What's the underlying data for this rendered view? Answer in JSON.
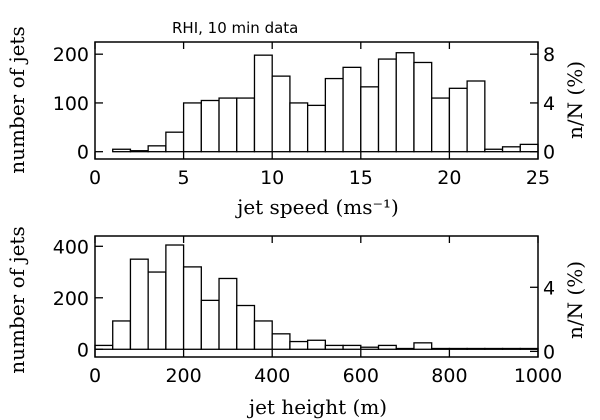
{
  "chart_data": [
    {
      "type": "bar",
      "title": "RHI, 10 min data",
      "xlabel": "jet speed (ms⁻¹)",
      "ylabel": "number of jets",
      "ylabel_right": "n/N (%)",
      "xlim": [
        0,
        25
      ],
      "ylim": [
        -15,
        225
      ],
      "right_ylim": [
        -0.6,
        9.0
      ],
      "xticks": [
        0,
        5,
        10,
        15,
        20,
        25
      ],
      "yticks": [
        0,
        100,
        200
      ],
      "right_yticks": [
        0,
        4,
        8
      ],
      "bin_width": 1,
      "bin_start": 1,
      "values": [
        5,
        2,
        12,
        40,
        100,
        105,
        110,
        110,
        198,
        155,
        100,
        95,
        150,
        173,
        133,
        190,
        203,
        183,
        110,
        130,
        145,
        5,
        10,
        15
      ],
      "grid": false
    },
    {
      "type": "bar",
      "xlabel": "jet height (m)",
      "ylabel": "number of jets",
      "ylabel_right": "n/N (%)",
      "xlim": [
        0,
        1000
      ],
      "ylim": [
        -30,
        440
      ],
      "right_ylim": [
        -0.35,
        7.2
      ],
      "xticks": [
        0,
        200,
        400,
        600,
        800,
        1000
      ],
      "yticks": [
        0,
        200,
        400
      ],
      "right_yticks": [
        0,
        4
      ],
      "bin_width": 40,
      "bin_start": 0,
      "values": [
        15,
        110,
        350,
        300,
        405,
        320,
        190,
        275,
        170,
        110,
        60,
        30,
        35,
        15,
        15,
        8,
        15,
        3,
        25,
        3,
        3,
        3,
        3,
        3,
        3
      ],
      "grid": false
    }
  ]
}
